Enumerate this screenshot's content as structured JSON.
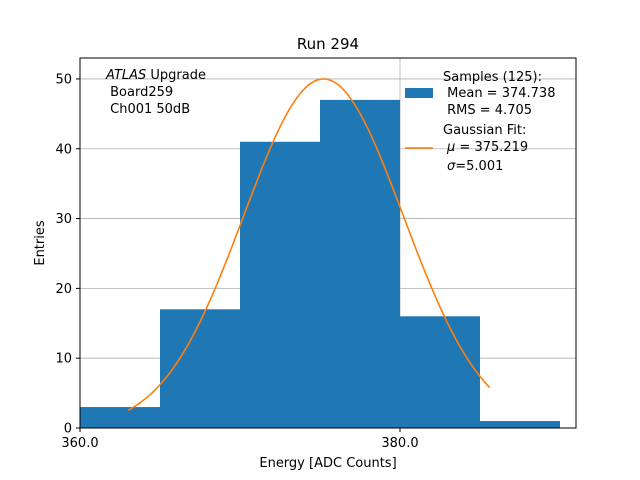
{
  "chart_data": {
    "type": "histogram",
    "title": "Run 294",
    "xlabel": "Energy [ADC Counts]",
    "ylabel": "Entries",
    "xlim": [
      360,
      391
    ],
    "ylim": [
      0,
      53
    ],
    "x_ticks": [
      {
        "value": 360,
        "label": "360.0"
      },
      {
        "value": 380,
        "label": "380.0"
      }
    ],
    "y_ticks": [
      {
        "value": 0,
        "label": "0"
      },
      {
        "value": 10,
        "label": "10"
      },
      {
        "value": 20,
        "label": "20"
      },
      {
        "value": 30,
        "label": "30"
      },
      {
        "value": 40,
        "label": "40"
      },
      {
        "value": 50,
        "label": "50"
      }
    ],
    "grid": true,
    "bins": [
      {
        "start": 360,
        "end": 365,
        "count": 3
      },
      {
        "start": 365,
        "end": 370,
        "count": 17
      },
      {
        "start": 370,
        "end": 375,
        "count": 41
      },
      {
        "start": 375,
        "end": 380,
        "count": 47
      },
      {
        "start": 380,
        "end": 385,
        "count": 16
      },
      {
        "start": 385,
        "end": 390,
        "count": 1
      }
    ],
    "fit": {
      "type": "gaussian",
      "mu": 375.219,
      "sigma": 5.001,
      "amplitude": 50,
      "x_range": [
        363.0,
        385.6
      ]
    },
    "annotation": {
      "italic": "ATLAS",
      "rest": " Upgrade",
      "line2": " Board259",
      "line3": " Ch001 50dB"
    },
    "legend": {
      "position": "top-right",
      "samples": {
        "line1": "Samples (125):",
        "line2": " Mean = 374.738",
        "line3": " RMS = 4.705"
      },
      "fit": {
        "line1": "Gaussian Fit:",
        "mu_symbol": "μ",
        "mu_rest": " = 375.219",
        "sigma_symbol": "σ",
        "sigma_rest": "=5.001"
      }
    },
    "colors": {
      "bars": "#1f77b4",
      "fit": "#ff7f0e",
      "grid": "#b0b0b0",
      "axes": "#000000"
    }
  }
}
